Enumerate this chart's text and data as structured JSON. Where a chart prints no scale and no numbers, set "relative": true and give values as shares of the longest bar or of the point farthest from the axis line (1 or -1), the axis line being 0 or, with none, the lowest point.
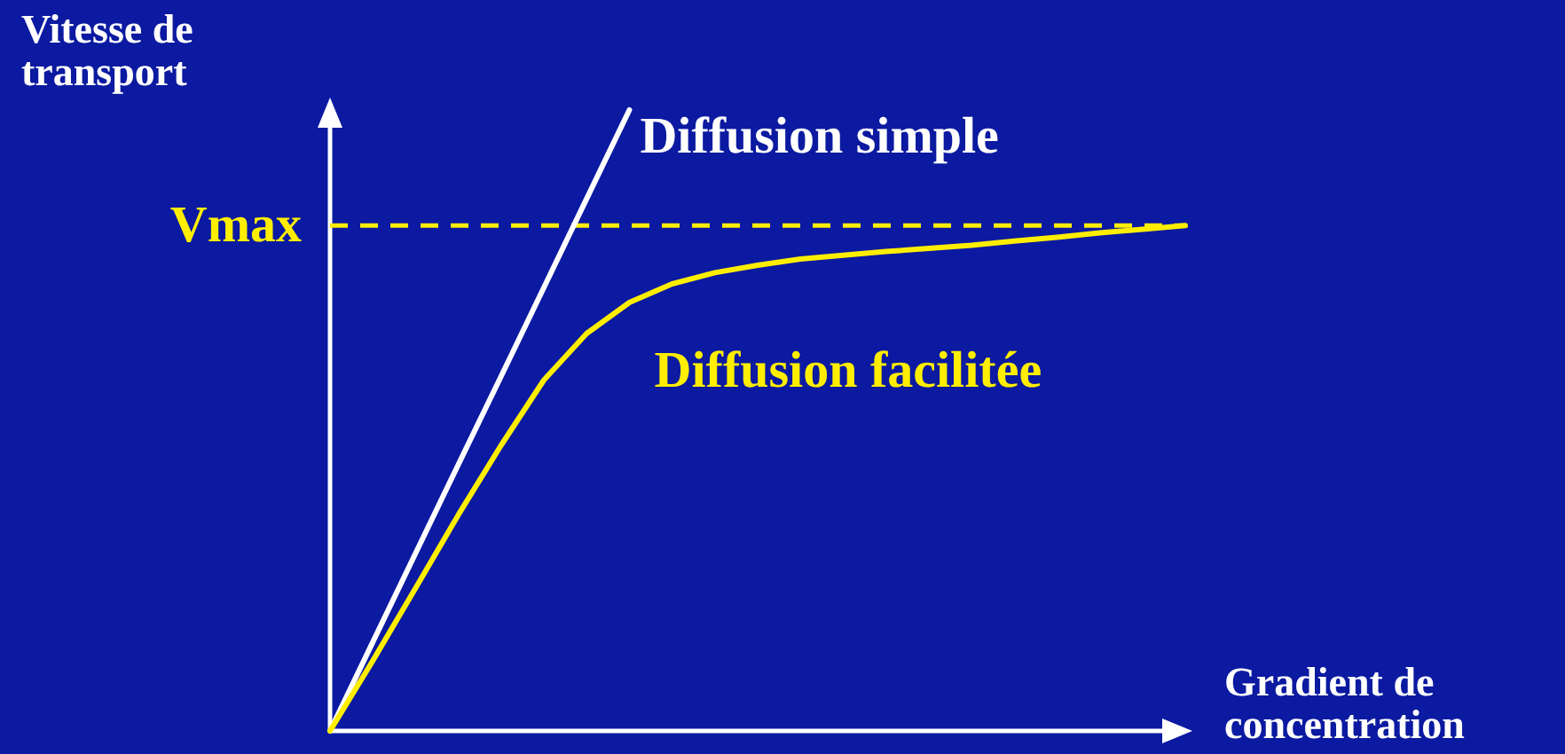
{
  "chart_data": {
    "type": "line",
    "relative": true,
    "xlabel": "Gradient de concentration",
    "ylabel": "Vitesse de transport",
    "line_style": "solid",
    "categories": [
      null,
      null,
      null,
      null,
      null,
      null,
      null,
      null,
      null,
      null,
      null,
      null,
      null,
      null,
      null,
      null,
      null,
      null,
      null,
      null,
      null
    ],
    "series": [
      {
        "name": "Diffusion simple",
        "color": "#ffffff",
        "values": [
          0,
          0.143,
          0.286,
          0.429,
          0.571,
          0.714,
          0.857,
          1,
          null,
          null,
          null,
          null,
          null,
          null,
          null,
          null,
          null,
          null,
          null,
          null,
          null
        ]
      },
      {
        "name": "Diffusion facilitée",
        "color": "#ffee00",
        "values": [
          0,
          0.113,
          0.23,
          0.348,
          0.46,
          0.565,
          0.64,
          0.69,
          0.72,
          0.738,
          0.75,
          0.76,
          0.766,
          0.772,
          0.777,
          0.782,
          0.789,
          0.795,
          0.802,
          0.808,
          0.814
        ]
      }
    ],
    "ref_lines": [
      {
        "axis": "y",
        "value": 0.814,
        "label": "Vmax",
        "color": "#ffee00",
        "line_style": "dashed"
      }
    ]
  }
}
